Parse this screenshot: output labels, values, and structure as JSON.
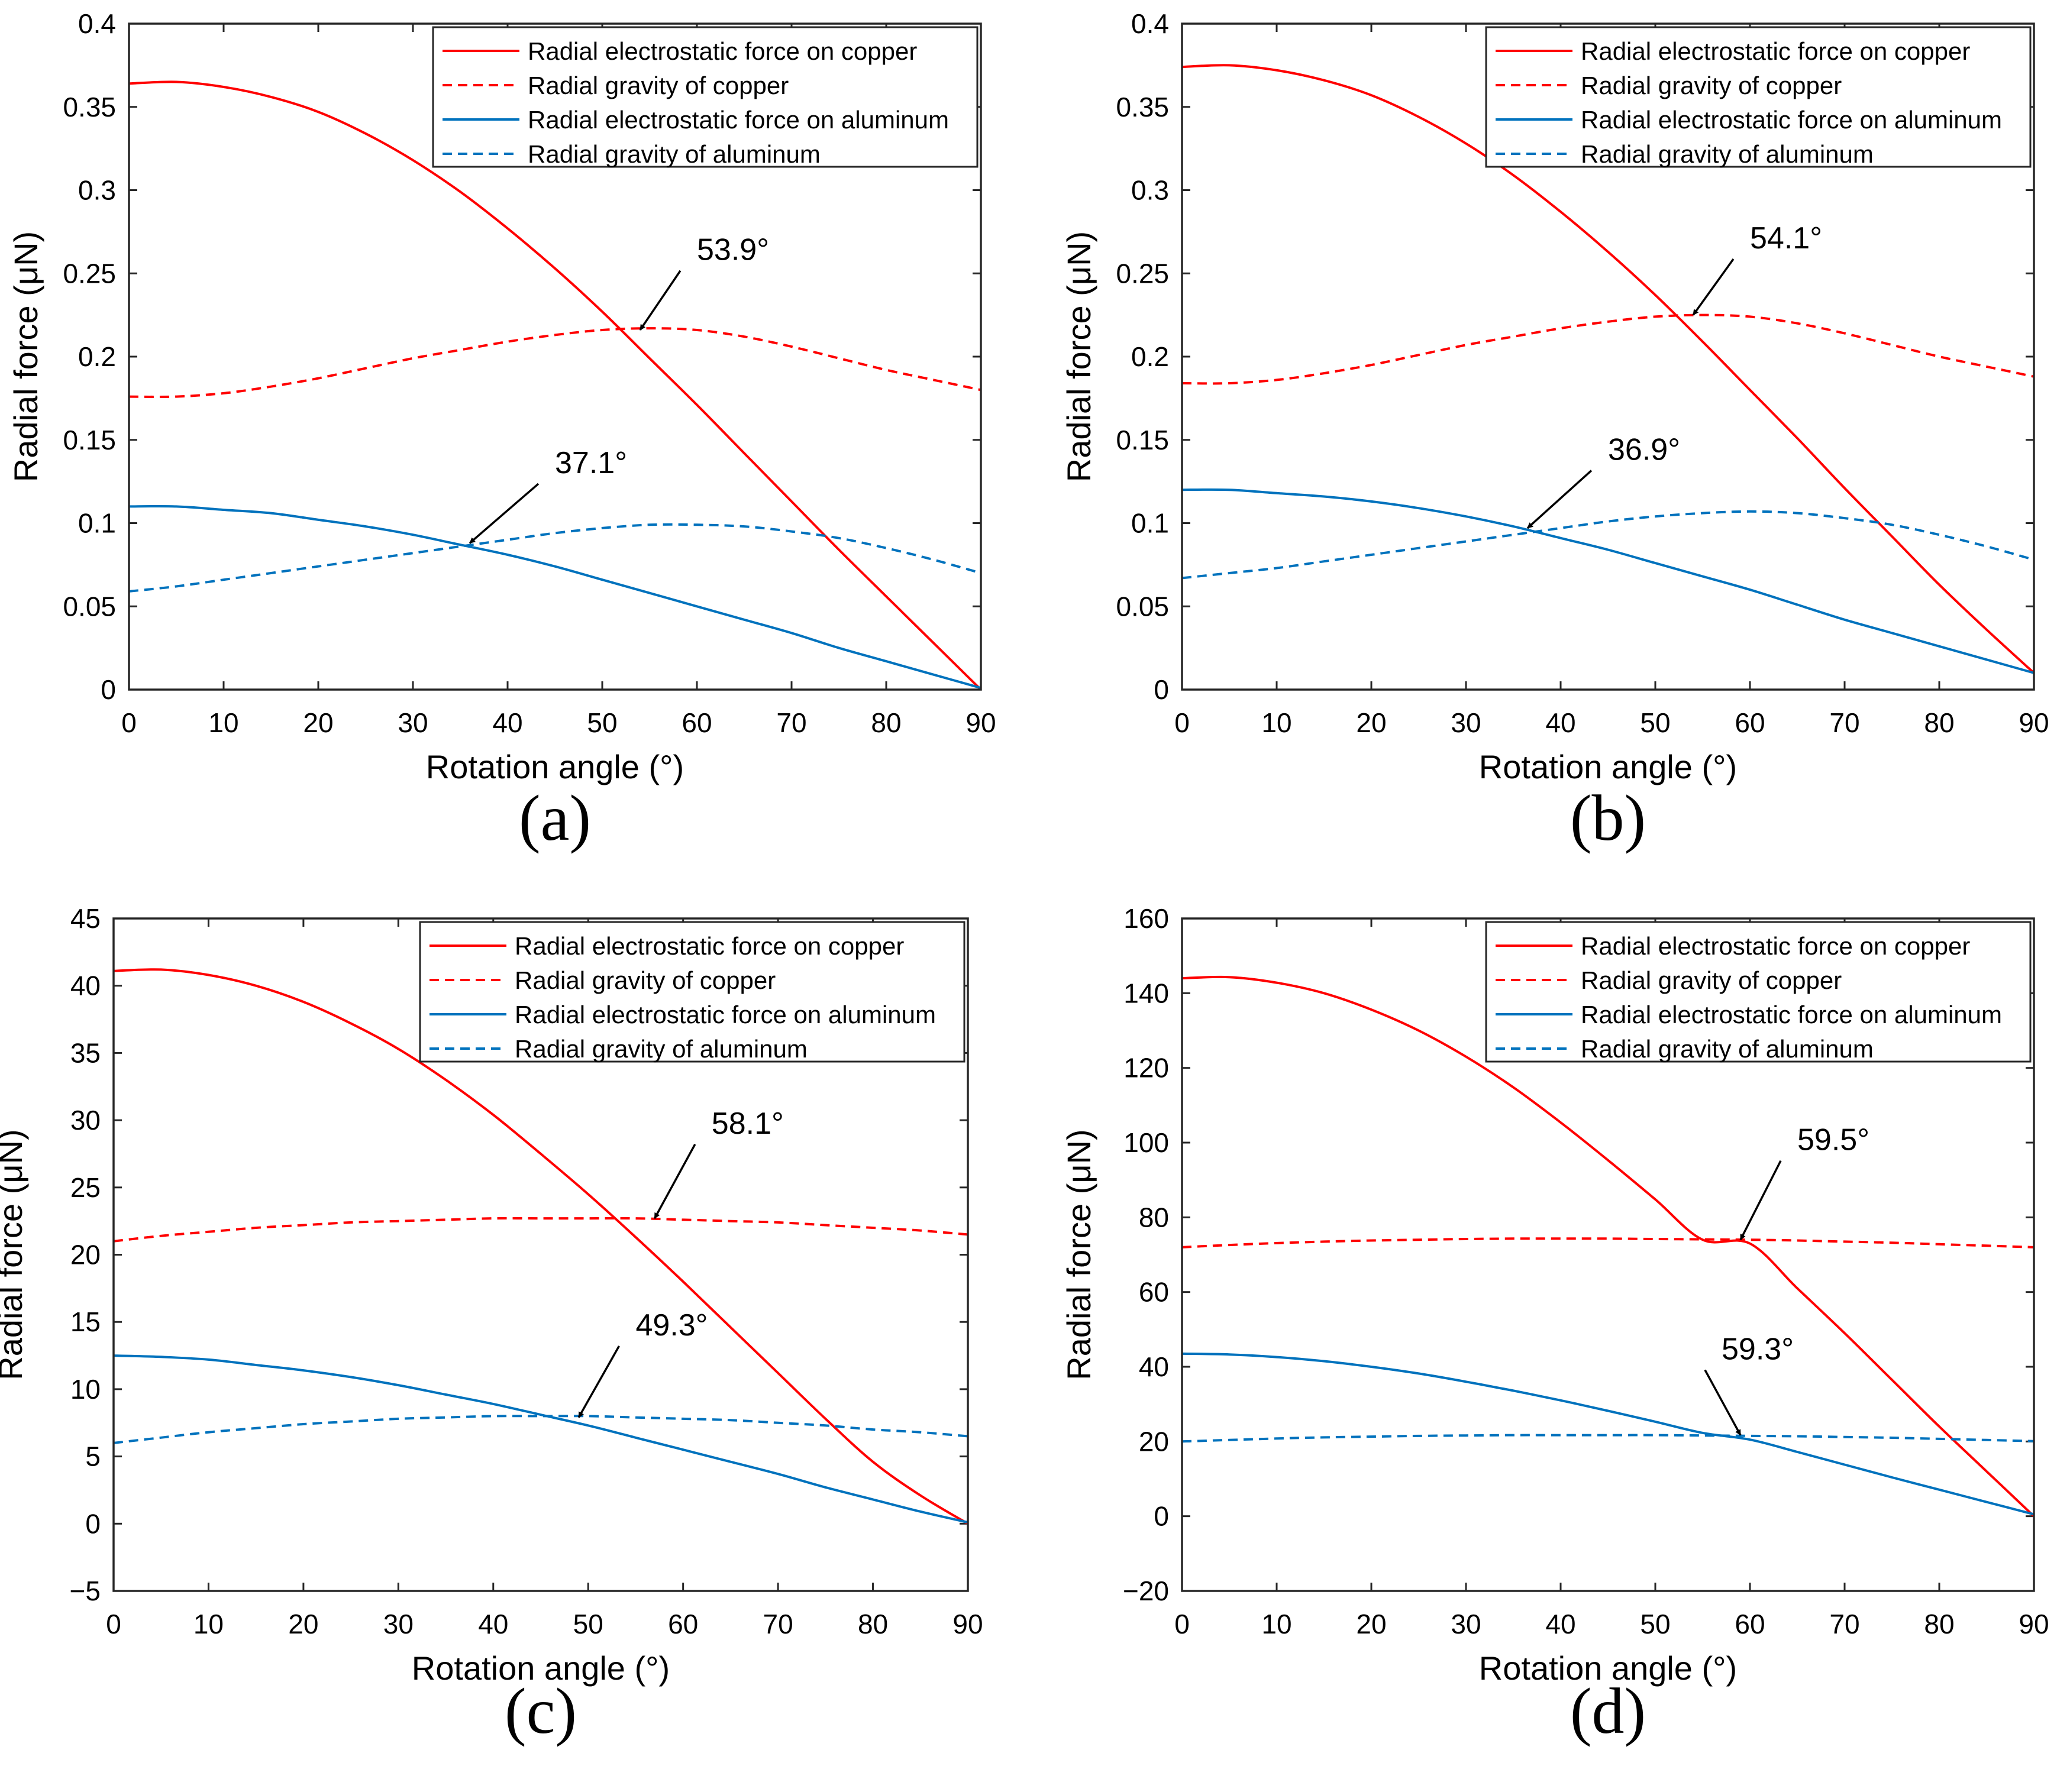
{
  "figure": {
    "colors": {
      "red": "#ff0000",
      "blue": "#0072bd",
      "axis": "#262626"
    }
  },
  "chart_data": [
    {
      "id": "a",
      "panel_label": "(a)",
      "type": "line",
      "xlabel": "Rotation angle (°)",
      "ylabel": "Radial force (μN)",
      "xlim": [
        0,
        90
      ],
      "ylim": [
        0,
        0.4
      ],
      "xticks": [
        0,
        10,
        20,
        30,
        40,
        50,
        60,
        70,
        80,
        90
      ],
      "yticks": [
        0,
        0.05,
        0.1,
        0.15,
        0.2,
        0.25,
        0.3,
        0.35,
        0.4
      ],
      "ytick_labels": [
        "0",
        "0.05",
        "0.1",
        "0.15",
        "0.2",
        "0.25",
        "0.3",
        "0.35",
        "0.4"
      ],
      "legend_position": "top-right",
      "x": [
        0,
        5,
        10,
        15,
        20,
        25,
        30,
        35,
        40,
        45,
        50,
        55,
        60,
        65,
        70,
        75,
        80,
        85,
        90
      ],
      "series": [
        {
          "name": "Radial electrostatic force on copper",
          "color": "#ff0000",
          "dash": "solid",
          "values": [
            0.364,
            0.365,
            0.362,
            0.356,
            0.347,
            0.334,
            0.318,
            0.299,
            0.277,
            0.253,
            0.227,
            0.199,
            0.171,
            0.142,
            0.113,
            0.084,
            0.056,
            0.028,
            0.0
          ]
        },
        {
          "name": "Radial gravity of copper",
          "color": "#ff0000",
          "dash": "dashed",
          "values": [
            0.176,
            0.176,
            0.178,
            0.182,
            0.187,
            0.193,
            0.199,
            0.204,
            0.209,
            0.213,
            0.216,
            0.217,
            0.216,
            0.212,
            0.206,
            0.199,
            0.192,
            0.186,
            0.18
          ]
        },
        {
          "name": "Radial electrostatic force on aluminum",
          "color": "#0072bd",
          "dash": "solid",
          "values": [
            0.11,
            0.11,
            0.108,
            0.106,
            0.102,
            0.098,
            0.093,
            0.087,
            0.081,
            0.074,
            0.066,
            0.058,
            0.05,
            0.042,
            0.034,
            0.025,
            0.017,
            0.009,
            0.001
          ]
        },
        {
          "name": "Radial gravity of aluminum",
          "color": "#0072bd",
          "dash": "dashed",
          "values": [
            0.059,
            0.062,
            0.066,
            0.07,
            0.074,
            0.078,
            0.082,
            0.086,
            0.09,
            0.094,
            0.097,
            0.099,
            0.099,
            0.098,
            0.095,
            0.091,
            0.085,
            0.078,
            0.07
          ]
        }
      ],
      "annotations": [
        {
          "text": "53.9°",
          "x": 54,
          "y": 0.216,
          "text_x": 60,
          "text_y": 0.258
        },
        {
          "text": "37.1°",
          "x": 36,
          "y": 0.088,
          "text_x": 45,
          "text_y": 0.13
        }
      ]
    },
    {
      "id": "b",
      "panel_label": "(b)",
      "type": "line",
      "xlabel": "Rotation angle (°)",
      "ylabel": "Radial force (μN)",
      "xlim": [
        0,
        90
      ],
      "ylim": [
        0,
        0.4
      ],
      "xticks": [
        0,
        10,
        20,
        30,
        40,
        50,
        60,
        70,
        80,
        90
      ],
      "yticks": [
        0,
        0.05,
        0.1,
        0.15,
        0.2,
        0.25,
        0.3,
        0.35,
        0.4
      ],
      "ytick_labels": [
        "0",
        "0.05",
        "0.1",
        "0.15",
        "0.2",
        "0.25",
        "0.3",
        "0.35",
        "0.4"
      ],
      "legend_position": "top-right",
      "x": [
        0,
        5,
        10,
        15,
        20,
        25,
        30,
        35,
        40,
        45,
        50,
        55,
        60,
        65,
        70,
        75,
        80,
        85,
        90
      ],
      "series": [
        {
          "name": "Radial electrostatic force on copper",
          "color": "#ff0000",
          "dash": "solid",
          "values": [
            0.374,
            0.375,
            0.372,
            0.366,
            0.357,
            0.344,
            0.328,
            0.309,
            0.287,
            0.263,
            0.237,
            0.209,
            0.18,
            0.151,
            0.121,
            0.092,
            0.063,
            0.036,
            0.01
          ]
        },
        {
          "name": "Radial gravity of copper",
          "color": "#ff0000",
          "dash": "dashed",
          "values": [
            0.184,
            0.184,
            0.186,
            0.19,
            0.195,
            0.201,
            0.207,
            0.212,
            0.217,
            0.221,
            0.224,
            0.225,
            0.224,
            0.22,
            0.214,
            0.207,
            0.2,
            0.194,
            0.188
          ]
        },
        {
          "name": "Radial electrostatic force on aluminum",
          "color": "#0072bd",
          "dash": "solid",
          "values": [
            0.12,
            0.12,
            0.118,
            0.116,
            0.113,
            0.109,
            0.104,
            0.098,
            0.091,
            0.084,
            0.076,
            0.068,
            0.06,
            0.051,
            0.042,
            0.034,
            0.026,
            0.018,
            0.01
          ]
        },
        {
          "name": "Radial gravity of aluminum",
          "color": "#0072bd",
          "dash": "dashed",
          "values": [
            0.067,
            0.07,
            0.073,
            0.077,
            0.081,
            0.085,
            0.089,
            0.093,
            0.097,
            0.101,
            0.104,
            0.106,
            0.107,
            0.106,
            0.103,
            0.099,
            0.093,
            0.086,
            0.078
          ]
        }
      ],
      "annotations": [
        {
          "text": "54.1°",
          "x": 54,
          "y": 0.225,
          "text_x": 60,
          "text_y": 0.265
        },
        {
          "text": "36.9°",
          "x": 36.5,
          "y": 0.097,
          "text_x": 45,
          "text_y": 0.138
        }
      ]
    },
    {
      "id": "c",
      "panel_label": "(c)",
      "type": "line",
      "xlabel": "Rotation angle (°)",
      "ylabel": "Radial force (μN)",
      "xlim": [
        0,
        90
      ],
      "ylim": [
        -5,
        45
      ],
      "xticks": [
        0,
        10,
        20,
        30,
        40,
        50,
        60,
        70,
        80,
        90
      ],
      "yticks": [
        -5,
        0,
        5,
        10,
        15,
        20,
        25,
        30,
        35,
        40,
        45
      ],
      "ytick_labels": [
        "−5",
        "0",
        "5",
        "10",
        "15",
        "20",
        "25",
        "30",
        "35",
        "40",
        "45"
      ],
      "legend_position": "top-right",
      "x": [
        0,
        5,
        10,
        15,
        20,
        25,
        30,
        35,
        40,
        45,
        50,
        55,
        60,
        65,
        70,
        75,
        80,
        85,
        90
      ],
      "series": [
        {
          "name": "Radial electrostatic force on copper",
          "color": "#ff0000",
          "dash": "solid",
          "values": [
            41.1,
            41.2,
            40.8,
            40.0,
            38.8,
            37.2,
            35.3,
            33.0,
            30.4,
            27.5,
            24.5,
            21.3,
            18.0,
            14.6,
            11.2,
            7.8,
            4.6,
            2.1,
            0.0
          ]
        },
        {
          "name": "Radial gravity of copper",
          "color": "#ff0000",
          "dash": "dashed",
          "values": [
            21.0,
            21.4,
            21.7,
            22.0,
            22.2,
            22.4,
            22.5,
            22.6,
            22.7,
            22.7,
            22.7,
            22.7,
            22.6,
            22.5,
            22.4,
            22.2,
            22.0,
            21.8,
            21.5
          ]
        },
        {
          "name": "Radial electrostatic force on aluminum",
          "color": "#0072bd",
          "dash": "solid",
          "values": [
            12.5,
            12.4,
            12.2,
            11.8,
            11.4,
            10.9,
            10.3,
            9.6,
            8.9,
            8.1,
            7.3,
            6.4,
            5.5,
            4.6,
            3.7,
            2.7,
            1.8,
            0.9,
            0.1
          ]
        },
        {
          "name": "Radial gravity of aluminum",
          "color": "#0072bd",
          "dash": "dashed",
          "values": [
            6.0,
            6.4,
            6.8,
            7.1,
            7.4,
            7.6,
            7.8,
            7.9,
            8.0,
            8.0,
            8.0,
            7.9,
            7.8,
            7.7,
            7.5,
            7.3,
            7.0,
            6.8,
            6.5
          ]
        }
      ],
      "annotations": [
        {
          "text": "58.1°",
          "x": 57,
          "y": 22.7,
          "text_x": 63,
          "text_y": 29
        },
        {
          "text": "49.3°",
          "x": 49,
          "y": 7.9,
          "text_x": 55,
          "text_y": 14
        }
      ]
    },
    {
      "id": "d",
      "panel_label": "(d)",
      "type": "line",
      "xlabel": "Rotation angle (°)",
      "ylabel": "Radial force (μN)",
      "xlim": [
        0,
        90
      ],
      "ylim": [
        -20,
        160
      ],
      "xticks": [
        0,
        10,
        20,
        30,
        40,
        50,
        60,
        70,
        80,
        90
      ],
      "yticks": [
        -20,
        0,
        20,
        40,
        60,
        80,
        100,
        120,
        140,
        160
      ],
      "ytick_labels": [
        "−20",
        "0",
        "20",
        "40",
        "60",
        "80",
        "100",
        "120",
        "140",
        "160"
      ],
      "legend_position": "top-right",
      "x": [
        0,
        5,
        10,
        15,
        20,
        25,
        30,
        35,
        40,
        45,
        50,
        55,
        60,
        65,
        70,
        75,
        80,
        85,
        90
      ],
      "series": [
        {
          "name": "Radial electrostatic force on copper",
          "color": "#ff0000",
          "dash": "solid",
          "values": [
            144,
            144.3,
            142.8,
            140.0,
            135.6,
            130.0,
            123.0,
            114.8,
            105.4,
            95.3,
            84.8,
            74.0,
            73.0,
            61.0,
            49.0,
            36.5,
            24.0,
            12.0,
            0.0
          ]
        },
        {
          "name": "Radial gravity of copper",
          "color": "#ff0000",
          "dash": "dashed",
          "values": [
            72.0,
            72.6,
            73.1,
            73.5,
            73.8,
            74.0,
            74.2,
            74.3,
            74.3,
            74.3,
            74.2,
            74.1,
            74.0,
            73.8,
            73.5,
            73.2,
            72.8,
            72.4,
            72.0
          ]
        },
        {
          "name": "Radial electrostatic force on aluminum",
          "color": "#0072bd",
          "dash": "solid",
          "values": [
            43.5,
            43.3,
            42.6,
            41.5,
            40.0,
            38.2,
            36.0,
            33.6,
            31.0,
            28.2,
            25.3,
            22.3,
            20.5,
            17.2,
            13.8,
            10.4,
            7.1,
            3.8,
            0.5
          ]
        },
        {
          "name": "Radial gravity of aluminum",
          "color": "#0072bd",
          "dash": "dashed",
          "values": [
            20.0,
            20.4,
            20.8,
            21.1,
            21.3,
            21.5,
            21.6,
            21.7,
            21.7,
            21.7,
            21.7,
            21.6,
            21.5,
            21.4,
            21.2,
            21.0,
            20.7,
            20.4,
            20.1
          ]
        }
      ],
      "annotations": [
        {
          "text": "59.5°",
          "x": 59,
          "y": 74.0,
          "text_x": 65,
          "text_y": 98
        },
        {
          "text": "59.3°",
          "x": 59,
          "y": 21.7,
          "text_x": 57,
          "text_y": 42
        }
      ]
    }
  ]
}
